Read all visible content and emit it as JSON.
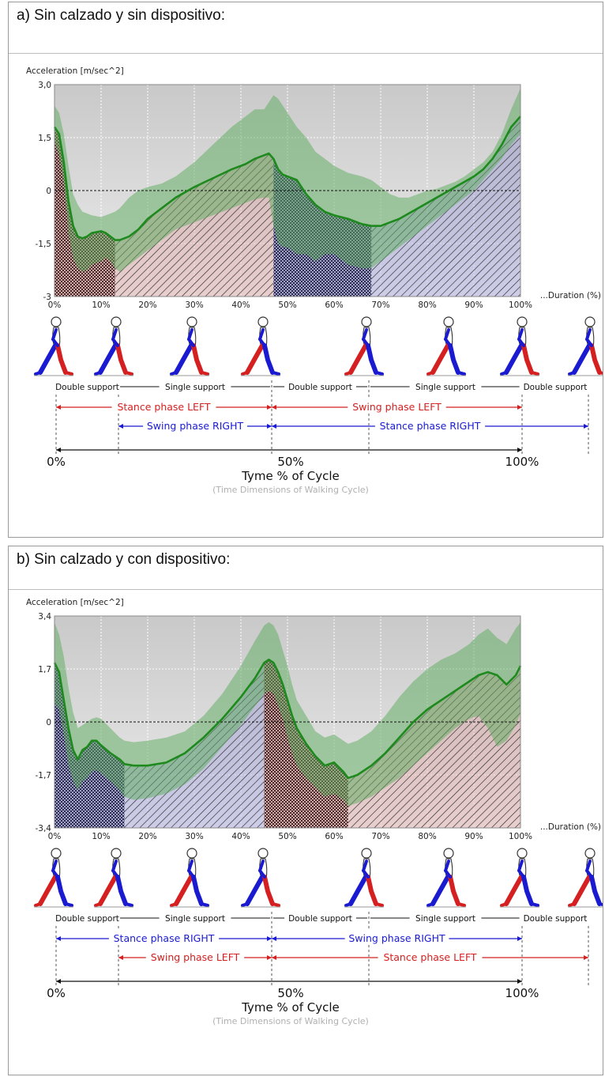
{
  "colors": {
    "left": "#d42020",
    "right": "#1a1ad0",
    "band": "#5cab5c",
    "mean": "#1e8a1e",
    "plot_bg": "#d6d6d6"
  },
  "chart_data": [
    {
      "heading": "a) Sin calzado y sin dispositivo:",
      "type": "area",
      "ylabel": "Acceleration [m/sec^2]",
      "xlabel": "...Duration (%)",
      "ylim": [
        -3,
        3
      ],
      "yticks": [
        "3,0",
        "1,5",
        "0",
        "-1,5",
        "-3"
      ],
      "xticks": [
        "0%",
        "10%",
        "20%",
        "30%",
        "40%",
        "50%",
        "60%",
        "70%",
        "80%",
        "90%",
        "100%"
      ],
      "grid": true,
      "x": [
        0,
        1,
        2,
        3,
        4,
        5,
        6,
        7,
        8,
        10,
        11,
        12,
        13,
        14,
        16,
        18,
        20,
        23,
        26,
        30,
        34,
        38,
        41,
        43,
        45,
        46,
        47,
        48,
        49,
        50,
        52,
        54,
        56,
        58,
        60,
        63,
        66,
        68,
        70,
        72,
        74,
        76,
        78,
        80,
        82,
        84,
        86,
        88,
        90,
        92,
        94,
        96,
        98,
        100
      ],
      "series": [
        {
          "role": "mean",
          "values": [
            1.8,
            1.6,
            0.8,
            -0.3,
            -1.0,
            -1.3,
            -1.35,
            -1.3,
            -1.2,
            -1.15,
            -1.2,
            -1.3,
            -1.4,
            -1.4,
            -1.3,
            -1.1,
            -0.8,
            -0.5,
            -0.2,
            0.1,
            0.35,
            0.6,
            0.75,
            0.9,
            1.0,
            1.05,
            0.9,
            0.6,
            0.45,
            0.4,
            0.3,
            -0.1,
            -0.4,
            -0.6,
            -0.7,
            -0.8,
            -0.95,
            -1.0,
            -1.0,
            -0.9,
            -0.8,
            -0.65,
            -0.5,
            -0.35,
            -0.2,
            -0.05,
            0.1,
            0.25,
            0.4,
            0.6,
            0.9,
            1.3,
            1.8,
            2.1
          ]
        },
        {
          "role": "upper",
          "values": [
            2.4,
            2.2,
            1.6,
            0.7,
            -0.1,
            -0.4,
            -0.6,
            -0.65,
            -0.7,
            -0.75,
            -0.7,
            -0.65,
            -0.6,
            -0.5,
            -0.2,
            0.0,
            0.1,
            0.2,
            0.4,
            0.8,
            1.3,
            1.8,
            2.1,
            2.3,
            2.3,
            2.5,
            2.7,
            2.6,
            2.4,
            2.2,
            1.8,
            1.5,
            1.1,
            0.9,
            0.7,
            0.5,
            0.4,
            0.3,
            0.1,
            -0.1,
            -0.2,
            -0.2,
            -0.1,
            0.0,
            0.05,
            0.15,
            0.25,
            0.4,
            0.6,
            0.8,
            1.1,
            1.6,
            2.3,
            2.9
          ]
        },
        {
          "role": "lower",
          "values": [
            1.4,
            1.0,
            0.2,
            -1.2,
            -1.9,
            -2.2,
            -2.3,
            -2.25,
            -2.1,
            -2.0,
            -1.9,
            -2.0,
            -2.2,
            -2.3,
            -2.1,
            -1.9,
            -1.7,
            -1.4,
            -1.1,
            -0.9,
            -0.7,
            -0.5,
            -0.35,
            -0.25,
            -0.2,
            -0.2,
            -1.0,
            -1.5,
            -1.6,
            -1.6,
            -1.8,
            -1.8,
            -2.0,
            -1.8,
            -1.8,
            -2.1,
            -2.2,
            -2.2,
            -2.0,
            -1.8,
            -1.6,
            -1.4,
            -1.2,
            -1.0,
            -0.8,
            -0.6,
            -0.4,
            -0.2,
            0.0,
            0.3,
            0.6,
            0.9,
            1.3,
            1.6
          ]
        }
      ],
      "phase_shading": [
        {
          "from": 0,
          "to": 13,
          "pattern": "checker",
          "color": "left"
        },
        {
          "from": 13,
          "to": 47,
          "pattern": "hatch",
          "color": "left"
        },
        {
          "from": 47,
          "to": 68,
          "pattern": "checker",
          "color": "right"
        },
        {
          "from": 68,
          "to": 100,
          "pattern": "hatch",
          "color": "right"
        }
      ],
      "figure_feet": [
        [
          "right",
          "left"
        ],
        [
          "right",
          "left"
        ],
        [
          "right",
          "left"
        ],
        [
          "left",
          "right"
        ],
        [
          "left",
          "right"
        ],
        [
          "left",
          "right"
        ],
        [
          "right",
          "left"
        ],
        [
          "right",
          "left"
        ]
      ],
      "support_row": [
        "Double support",
        "Single support",
        "Double support",
        "Single support",
        "Double support"
      ],
      "stance_row": [
        {
          "label": "Stance phase LEFT",
          "color": "left"
        },
        {
          "label": "Swing phase LEFT",
          "color": "left"
        }
      ],
      "swing_row": [
        {
          "label": "Swing phase RIGHT",
          "color": "right"
        },
        {
          "label": "Stance phase RIGHT",
          "color": "right"
        }
      ],
      "cycle_axis": {
        "ticks": [
          "0%",
          "50%",
          "100%"
        ],
        "title": "Tyme % of Cycle",
        "caption": "(Time Dimensions of Walking Cycle)"
      }
    },
    {
      "heading": "b) Sin calzado y con dispositivo:",
      "type": "area",
      "ylabel": "Acceleration [m/sec^2]",
      "xlabel": "...Duration (%)",
      "ylim": [
        -3.4,
        3.4
      ],
      "yticks": [
        "3,4",
        "1,7",
        "0",
        "-1,7",
        "-3,4"
      ],
      "xticks": [
        "0%",
        "10%",
        "20%",
        "30%",
        "40%",
        "50%",
        "60%",
        "70%",
        "80%",
        "90%",
        "100%"
      ],
      "grid": true,
      "x": [
        0,
        1,
        2,
        3,
        4,
        5,
        6,
        7,
        8,
        9,
        10,
        12,
        14,
        15,
        17,
        20,
        24,
        28,
        32,
        36,
        40,
        43,
        45,
        46,
        47,
        48,
        49,
        50,
        51,
        52,
        54,
        56,
        58,
        60,
        62,
        63,
        65,
        68,
        71,
        74,
        77,
        80,
        83,
        86,
        89,
        91,
        93,
        95,
        97,
        99,
        100
      ],
      "series": [
        {
          "role": "mean",
          "values": [
            1.9,
            1.6,
            0.7,
            -0.2,
            -0.9,
            -1.2,
            -0.9,
            -0.8,
            -0.6,
            -0.6,
            -0.75,
            -1.0,
            -1.2,
            -1.35,
            -1.4,
            -1.4,
            -1.3,
            -1.0,
            -0.5,
            0.1,
            0.8,
            1.4,
            1.9,
            2.0,
            1.9,
            1.6,
            1.2,
            0.7,
            0.2,
            -0.2,
            -0.7,
            -1.1,
            -1.4,
            -1.3,
            -1.6,
            -1.8,
            -1.7,
            -1.4,
            -1.0,
            -0.5,
            0.0,
            0.4,
            0.7,
            1.0,
            1.3,
            1.5,
            1.6,
            1.5,
            1.2,
            1.5,
            1.8
          ]
        },
        {
          "role": "upper",
          "values": [
            3.2,
            2.8,
            2.1,
            1.1,
            0.3,
            -0.2,
            -0.1,
            0.0,
            0.1,
            0.15,
            0.1,
            -0.2,
            -0.5,
            -0.6,
            -0.65,
            -0.6,
            -0.5,
            -0.3,
            0.2,
            0.9,
            1.8,
            2.6,
            3.1,
            3.2,
            3.1,
            2.8,
            2.3,
            1.8,
            1.2,
            0.7,
            0.2,
            -0.3,
            -0.5,
            -0.4,
            -0.6,
            -0.7,
            -0.6,
            -0.3,
            0.2,
            0.8,
            1.3,
            1.7,
            2.0,
            2.2,
            2.5,
            2.8,
            3.0,
            2.7,
            2.5,
            3.0,
            3.2
          ]
        },
        {
          "role": "lower",
          "values": [
            0.6,
            0.4,
            -0.4,
            -1.4,
            -1.9,
            -2.2,
            -1.9,
            -1.8,
            -1.6,
            -1.55,
            -1.65,
            -1.9,
            -2.2,
            -2.4,
            -2.5,
            -2.45,
            -2.3,
            -2.0,
            -1.5,
            -0.8,
            -0.1,
            0.5,
            0.9,
            1.0,
            0.9,
            0.5,
            0.1,
            -0.5,
            -1.0,
            -1.4,
            -1.8,
            -2.1,
            -2.4,
            -2.3,
            -2.5,
            -2.7,
            -2.6,
            -2.4,
            -2.1,
            -1.8,
            -1.4,
            -1.0,
            -0.6,
            -0.2,
            0.1,
            0.2,
            -0.2,
            -0.8,
            -0.6,
            -0.1,
            0.3
          ]
        }
      ],
      "phase_shading": [
        {
          "from": 0,
          "to": 15,
          "pattern": "checker",
          "color": "right"
        },
        {
          "from": 15,
          "to": 45,
          "pattern": "hatch",
          "color": "right"
        },
        {
          "from": 45,
          "to": 63,
          "pattern": "checker",
          "color": "left"
        },
        {
          "from": 63,
          "to": 100,
          "pattern": "hatch",
          "color": "left"
        }
      ],
      "figure_feet": [
        [
          "left",
          "right"
        ],
        [
          "left",
          "right"
        ],
        [
          "left",
          "right"
        ],
        [
          "right",
          "left"
        ],
        [
          "right",
          "left"
        ],
        [
          "right",
          "left"
        ],
        [
          "left",
          "right"
        ],
        [
          "left",
          "right"
        ]
      ],
      "support_row": [
        "Double support",
        "Single support",
        "Double support",
        "Single support",
        "Double support"
      ],
      "stance_row": [
        {
          "label": "Stance phase RIGHT",
          "color": "right"
        },
        {
          "label": "Swing phase RIGHT",
          "color": "right"
        }
      ],
      "swing_row": [
        {
          "label": "Swing phase LEFT",
          "color": "left"
        },
        {
          "label": "Stance phase LEFT",
          "color": "left"
        }
      ],
      "cycle_axis": {
        "ticks": [
          "0%",
          "50%",
          "100%"
        ],
        "title": "Tyme % of Cycle",
        "caption": "(Time Dimensions of Walking Cycle)"
      }
    }
  ]
}
